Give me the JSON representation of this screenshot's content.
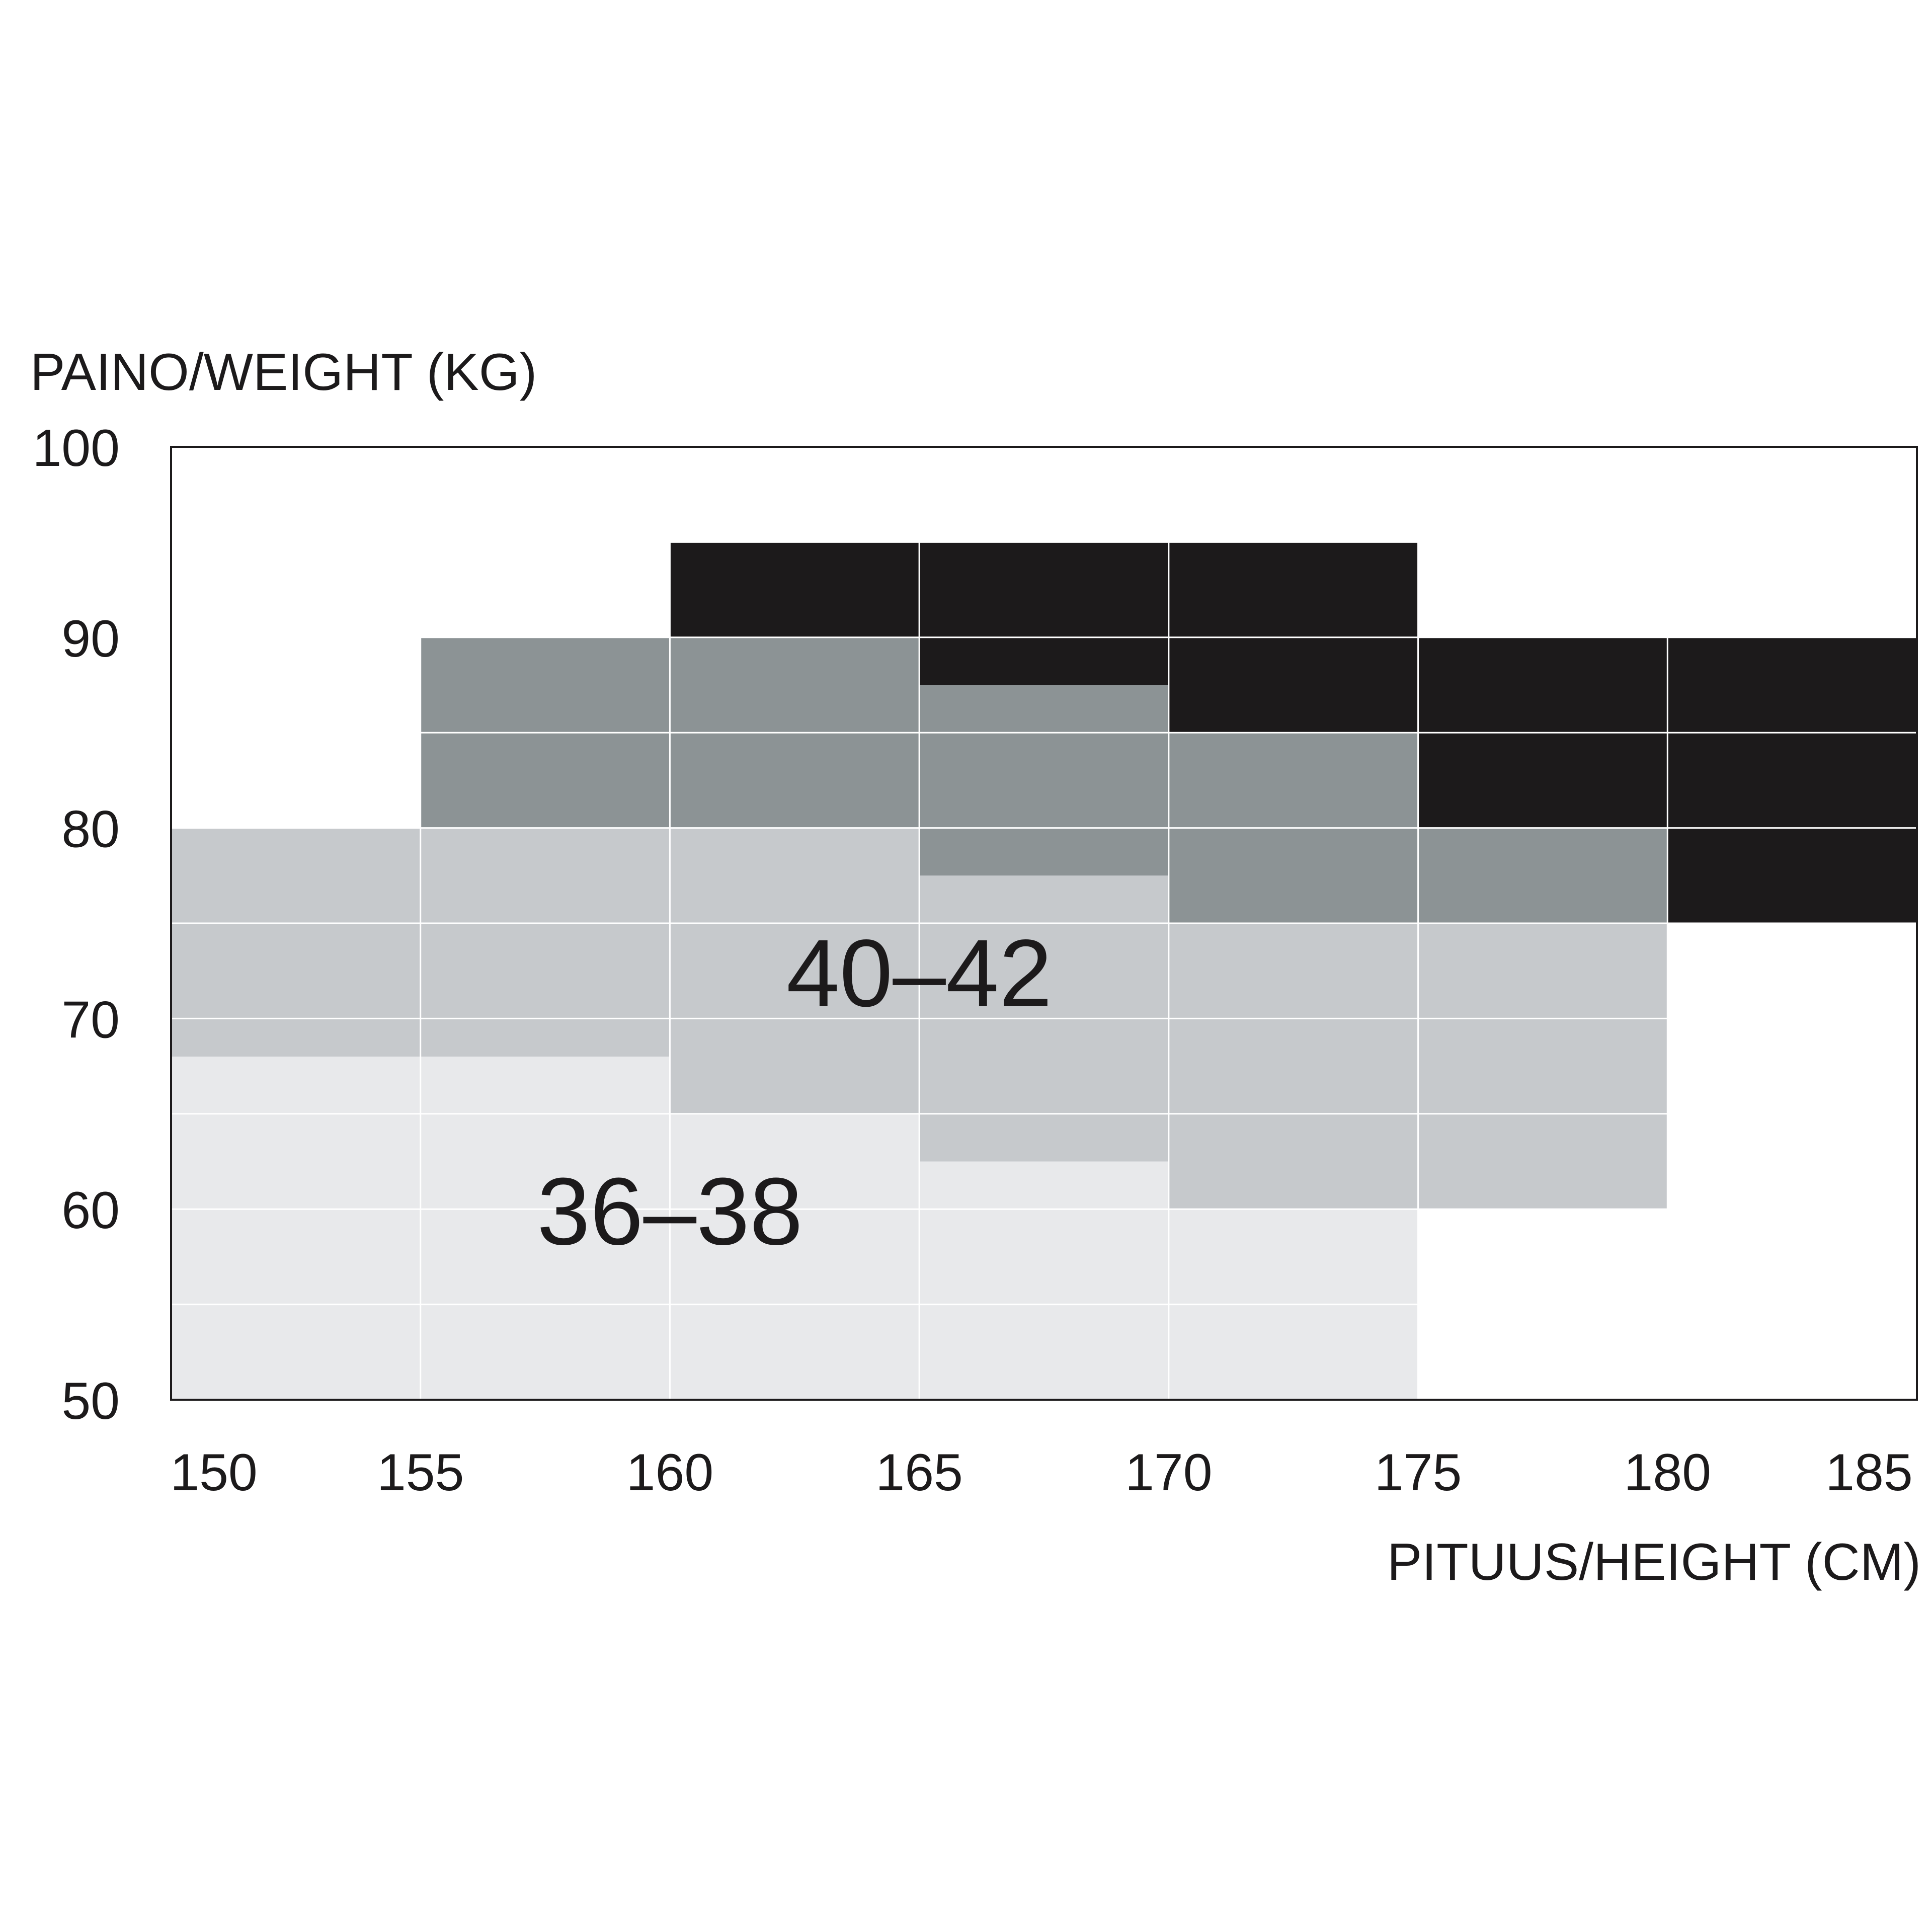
{
  "chart_data": {
    "type": "heatmap",
    "title": "",
    "ylabel": "PAINO/WEIGHT (KG)",
    "xlabel": "PITUUS/HEIGHT (CM)",
    "xlim": [
      150,
      185
    ],
    "ylim": [
      50,
      100
    ],
    "x_ticks": [
      "150",
      "155",
      "160",
      "165",
      "170",
      "175",
      "180",
      "185"
    ],
    "y_ticks": [
      "100",
      "90",
      "80",
      "70",
      "60",
      "50"
    ],
    "grid": true,
    "series": [
      {
        "name": "36–38",
        "color": "#e8e9eb",
        "regions": [
          {
            "x": [
              150,
              175
            ],
            "y": [
              50,
              68
            ]
          },
          {
            "x": [
              160,
              175
            ],
            "y": [
              50,
              65
            ]
          },
          {
            "x": [
              165,
              175
            ],
            "y": [
              50,
              62.5
            ]
          },
          {
            "x": [
              170,
              175
            ],
            "y": [
              50,
              60
            ]
          }
        ]
      },
      {
        "name": "40–42",
        "color": "#c6c9cc",
        "regions": [
          {
            "x": [
              150,
              160
            ],
            "y": [
              68,
              80
            ]
          },
          {
            "x": [
              160,
              165
            ],
            "y": [
              65,
              80
            ]
          },
          {
            "x": [
              165,
              170
            ],
            "y": [
              62.5,
              77.5
            ]
          },
          {
            "x": [
              170,
              180
            ],
            "y": [
              60,
              75
            ]
          }
        ]
      },
      {
        "name": "",
        "color": "#8c9395",
        "regions": [
          {
            "x": [
              155,
              165
            ],
            "y": [
              80,
              90
            ]
          },
          {
            "x": [
              165,
              170
            ],
            "y": [
              77.5,
              87.5
            ]
          },
          {
            "x": [
              170,
              175
            ],
            "y": [
              75,
              85
            ]
          },
          {
            "x": [
              175,
              180
            ],
            "y": [
              75,
              80
            ]
          }
        ]
      },
      {
        "name": "",
        "color": "#1c1a1b",
        "regions": [
          {
            "x": [
              160,
              175
            ],
            "y": [
              90,
              95
            ]
          },
          {
            "x": [
              165,
              170
            ],
            "y": [
              87.5,
              90
            ]
          },
          {
            "x": [
              170,
              175
            ],
            "y": [
              85,
              90
            ]
          },
          {
            "x": [
              175,
              180
            ],
            "y": [
              80,
              90
            ]
          },
          {
            "x": [
              180,
              185
            ],
            "y": [
              75,
              90
            ]
          }
        ]
      }
    ],
    "annotations": [
      {
        "text": "40–42",
        "x": 165,
        "y": 72.5
      },
      {
        "text": "36–38",
        "x": 160,
        "y": 60
      }
    ]
  }
}
